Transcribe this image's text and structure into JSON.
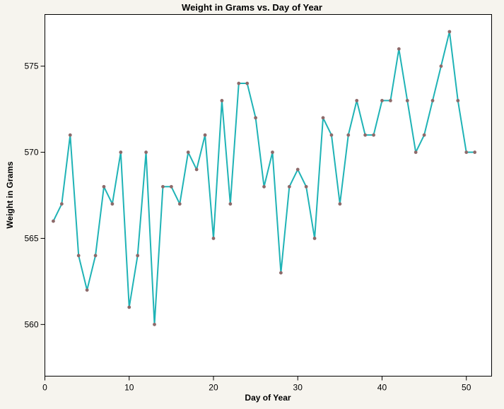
{
  "window": {
    "page_background": "#f6f4ee"
  },
  "chart_data": {
    "type": "line",
    "title": "Weight in Grams vs. Day of Year",
    "xlabel": "Day of Year",
    "ylabel": "Weight in Grams",
    "x": [
      1,
      2,
      3,
      4,
      5,
      6,
      7,
      8,
      9,
      10,
      11,
      12,
      13,
      14,
      15,
      16,
      17,
      18,
      19,
      20,
      21,
      22,
      23,
      24,
      25,
      26,
      27,
      28,
      29,
      30,
      31,
      32,
      33,
      34,
      35,
      36,
      37,
      38,
      39,
      40,
      41,
      42,
      43,
      44,
      45,
      46,
      47,
      48,
      49,
      50,
      51
    ],
    "values": [
      566,
      567,
      571,
      564,
      562,
      564,
      568,
      567,
      570,
      561,
      564,
      570,
      560,
      568,
      568,
      567,
      570,
      569,
      571,
      565,
      573,
      567,
      574,
      574,
      572,
      568,
      570,
      563,
      568,
      569,
      568,
      565,
      572,
      571,
      567,
      571,
      573,
      571,
      571,
      573,
      573,
      576,
      573,
      570,
      571,
      573,
      575,
      577,
      573,
      570,
      570
    ],
    "xlim": [
      0,
      53
    ],
    "ylim": [
      557,
      578
    ],
    "x_ticks": [
      0,
      10,
      20,
      30,
      40,
      50
    ],
    "y_ticks": [
      560,
      565,
      570,
      575
    ],
    "grid": false,
    "legend": "none",
    "line_color": "#1fb3b6",
    "marker_color": "#8d6a6a",
    "axis_color": "#000000",
    "plot_background": "#ffffff",
    "page_background": "#f6f4ee"
  }
}
